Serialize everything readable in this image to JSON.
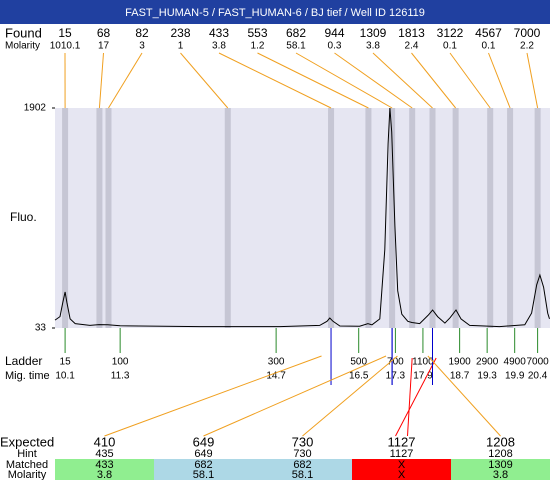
{
  "title": "FAST_HUMAN-5 / FAST_HUMAN-6 / BJ tief / Well ID 126119",
  "found": {
    "label": "Found",
    "molarity_label": "Molarity",
    "sizes": [
      15,
      68,
      82,
      238,
      433,
      553,
      682,
      944,
      1309,
      1813,
      3122,
      4567,
      7000
    ],
    "molarity": [
      1010.1,
      17,
      3,
      1,
      3.8,
      1.2,
      58.1,
      0.3,
      3.8,
      2.4,
      0.1,
      0.1,
      2.2
    ]
  },
  "chart_data": {
    "type": "line",
    "y_label": "Fluo.",
    "color": "#000000",
    "xlim": [
      9.88,
      20.67
    ],
    "ylim": [
      33,
      1902
    ],
    "yticks": [
      33,
      1902
    ],
    "x": [
      9.88,
      9.99,
      10.05,
      10.1,
      10.14,
      10.21,
      10.32,
      10.64,
      10.84,
      11.03,
      11.3,
      13.04,
      14.78,
      15.65,
      15.81,
      15.87,
      15.94,
      16.09,
      16.52,
      16.7,
      16.79,
      16.96,
      17.07,
      17.14,
      17.18,
      17.22,
      17.29,
      17.35,
      17.44,
      17.57,
      17.66,
      17.83,
      18.01,
      18.11,
      18.22,
      18.38,
      18.49,
      18.62,
      18.73,
      18.92,
      19.57,
      20.12,
      20.27,
      20.38,
      20.45,
      20.53,
      20.62,
      20.66
    ],
    "values": [
      100,
      130,
      250,
      339,
      250,
      110,
      70,
      55,
      62,
      60,
      52,
      45,
      45,
      55,
      90,
      118,
      90,
      50,
      48,
      70,
      60,
      110,
      700,
      1600,
      1902,
      1700,
      900,
      350,
      150,
      90,
      80,
      70,
      140,
      186,
      130,
      75,
      120,
      186,
      110,
      55,
      45,
      60,
      160,
      400,
      483,
      380,
      160,
      110
    ]
  },
  "ladder": {
    "label": "Ladder",
    "time_label": "Mig. time",
    "sizes": [
      15,
      100,
      300,
      500,
      700,
      1100,
      1900,
      2900,
      4900,
      7000
    ],
    "times": [
      10.1,
      11.3,
      14.7,
      16.5,
      17.3,
      17.9,
      18.7,
      19.3,
      19.9,
      20.4
    ],
    "color": "#2a8a2a"
  },
  "expected": {
    "label": "Expected",
    "hint_label": "Hint",
    "matched_label": "Matched",
    "molarity_label": "Molarity",
    "columns": [
      {
        "expected": 410,
        "hint": 435,
        "matched": 433,
        "molarity": 3.8,
        "color": "#90ee90"
      },
      {
        "expected": 649,
        "hint": 649,
        "matched": 682,
        "molarity": 58.1,
        "color": "#add8e6"
      },
      {
        "expected": 730,
        "hint": 730,
        "matched": 682,
        "molarity": 58.1,
        "color": "#add8e6"
      },
      {
        "expected": 1127,
        "hint": 1127,
        "matched": "X",
        "molarity": "X",
        "color": "#ff0000"
      },
      {
        "expected": 1208,
        "hint": 1208,
        "matched": 1309,
        "molarity": 3.8,
        "color": "#90ee90"
      }
    ]
  }
}
